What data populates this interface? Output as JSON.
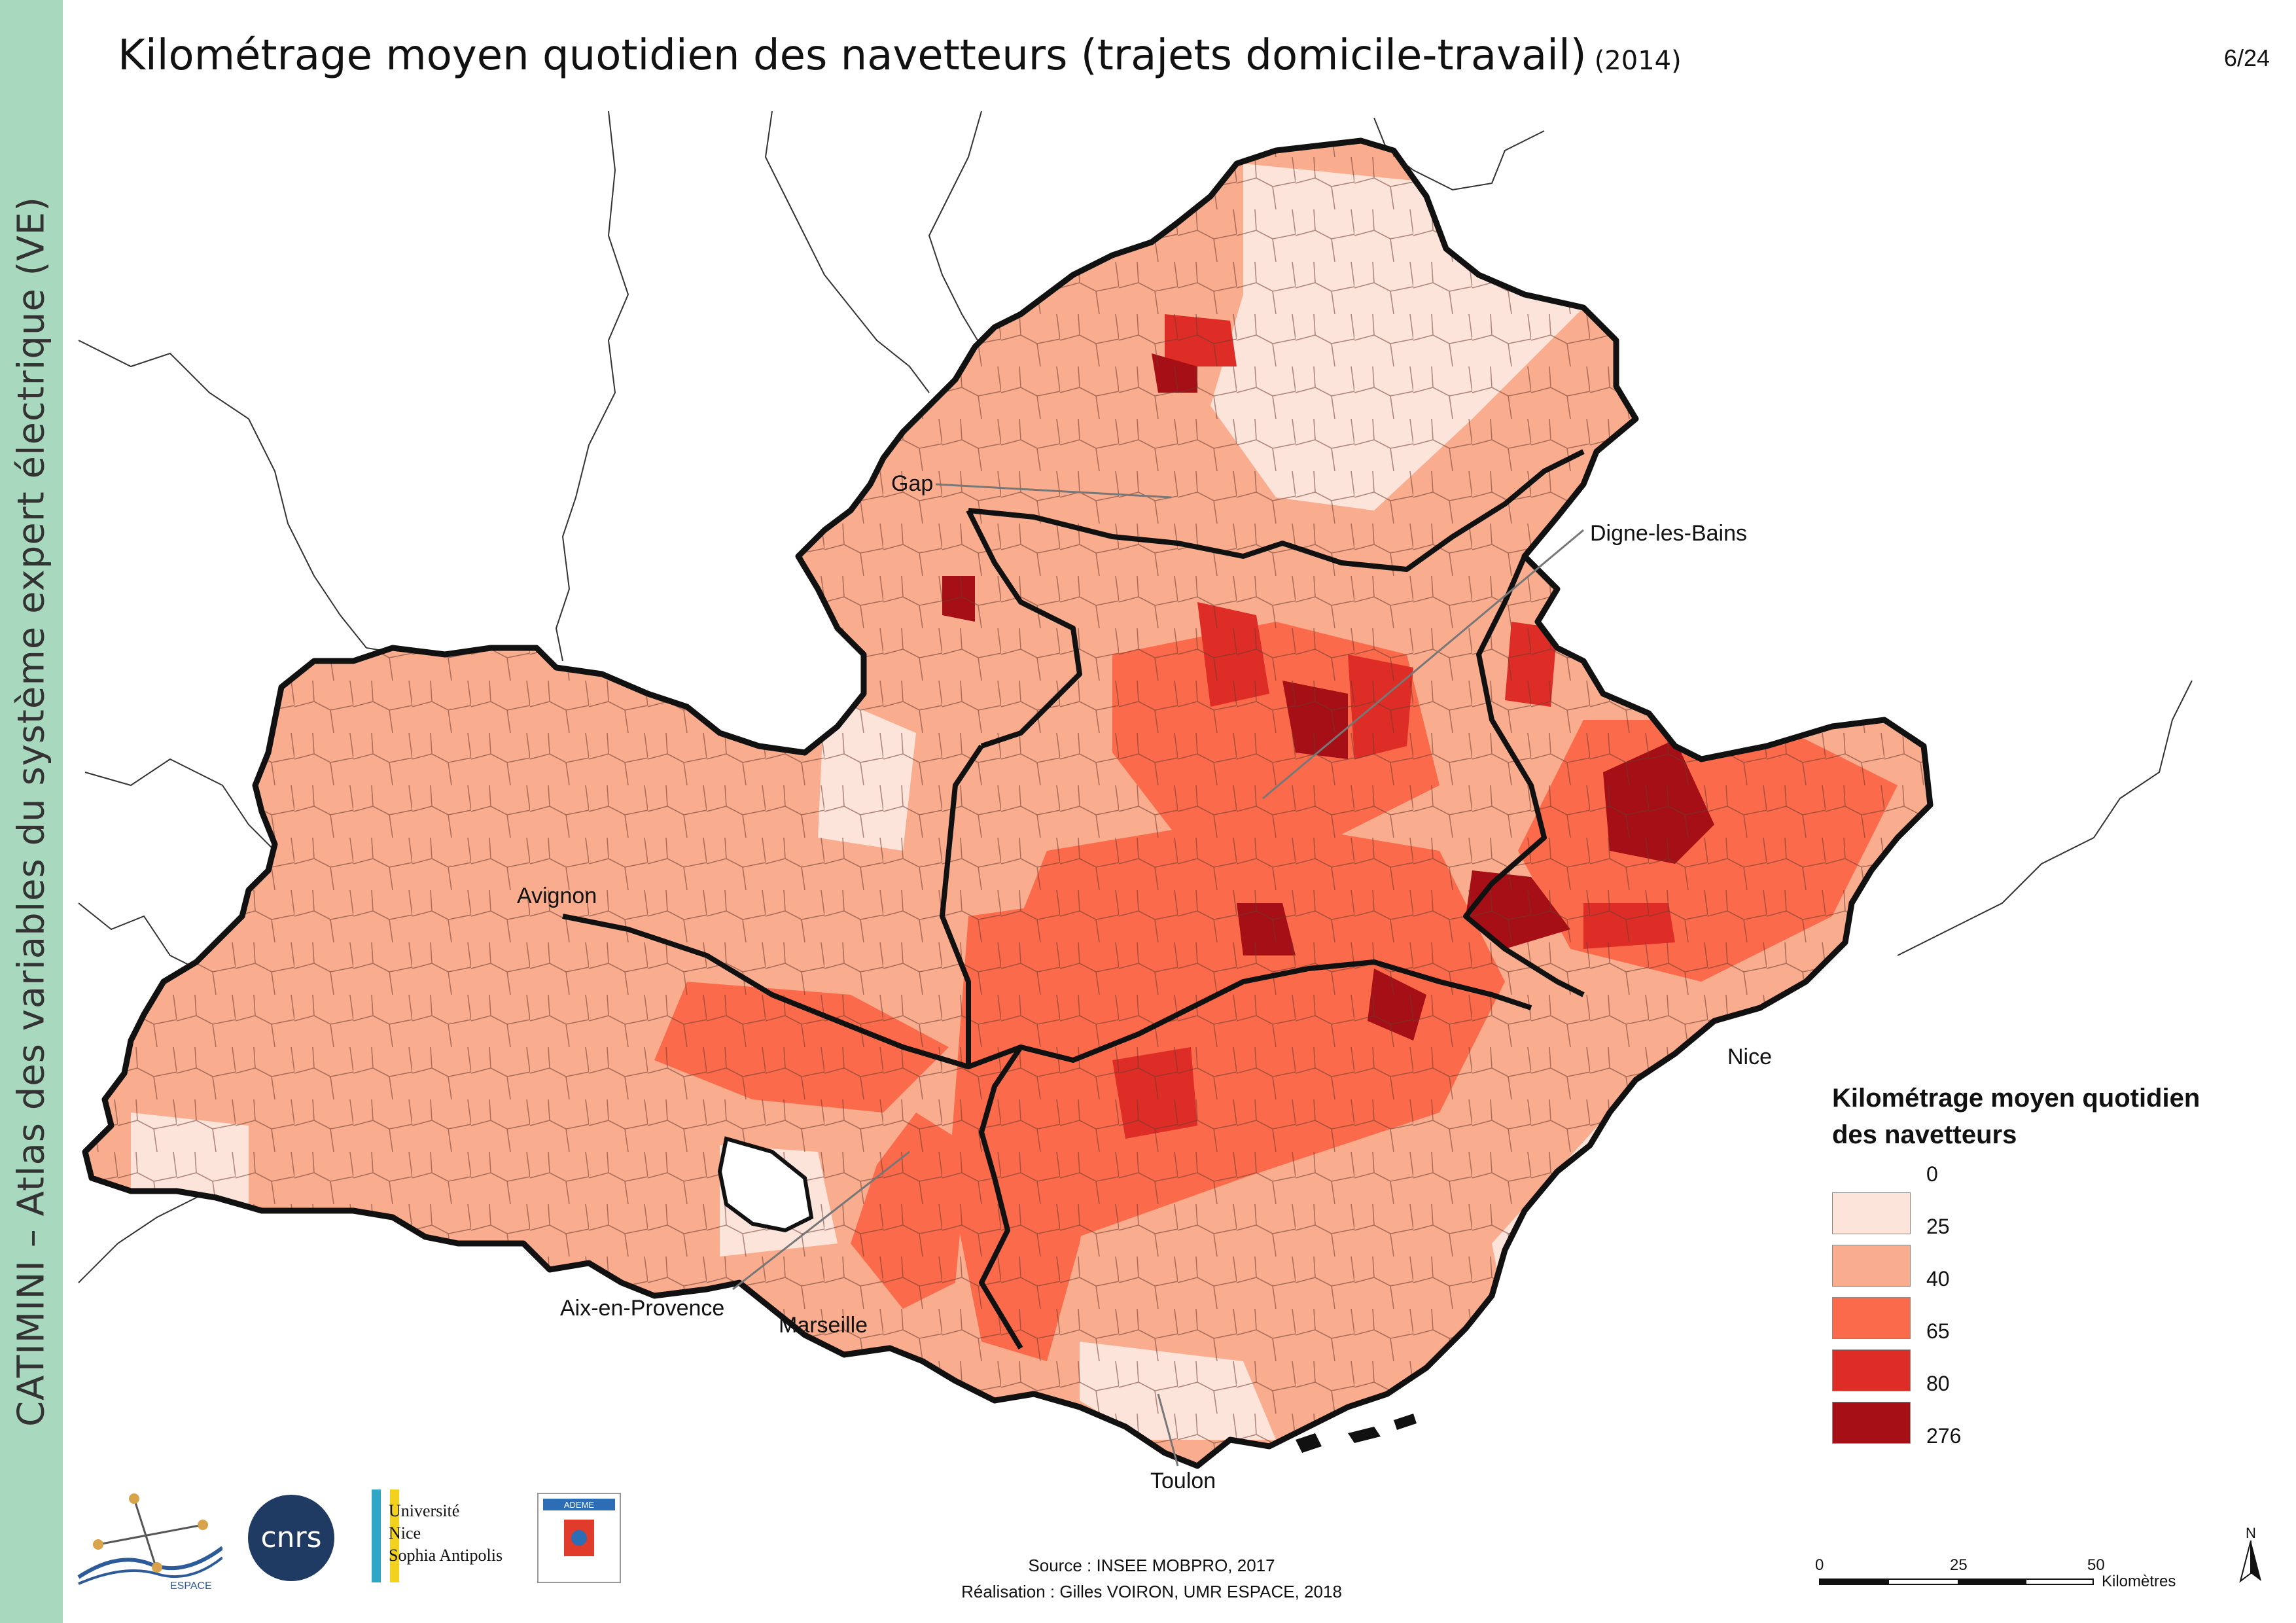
{
  "sidebar": {
    "text": "CATIMINI – Atlas des variables du système expert électrique (VE)"
  },
  "header": {
    "title": "Kilométrage moyen quotidien des navetteurs (trajets domicile-travail)",
    "year": "(2014)",
    "page": "6/24"
  },
  "colors": {
    "sidebar": "#a8d9bf",
    "border": "#111111",
    "class1": "#fde4da",
    "class2": "#f9ad8e",
    "class3": "#fb6a4a",
    "class4": "#de2d26",
    "class5": "#a50f15"
  },
  "cities": [
    {
      "name": "Gap"
    },
    {
      "name": "Digne-les-Bains"
    },
    {
      "name": "Avignon"
    },
    {
      "name": "Nice"
    },
    {
      "name": "Aix-en-Provence"
    },
    {
      "name": "Marseille"
    },
    {
      "name": "Toulon"
    }
  ],
  "legend": {
    "title": "Kilométrage moyen quotidien des navetteurs",
    "breaks": [
      "0",
      "25",
      "40",
      "65",
      "80",
      "276"
    ]
  },
  "source": {
    "line1": "Source : INSEE MOBPRO, 2017",
    "line2": "Réalisation : Gilles VOIRON, UMR ESPACE, 2018"
  },
  "scale": {
    "ticks": [
      "0",
      "25",
      "50"
    ],
    "unit": "Kilomètres"
  },
  "north": "N",
  "logos": {
    "espace": "ESPACE",
    "cnrs": "cnrs",
    "university": [
      "Université",
      "Nice",
      "Sophia Antipolis"
    ],
    "ademe": "ADEME"
  }
}
